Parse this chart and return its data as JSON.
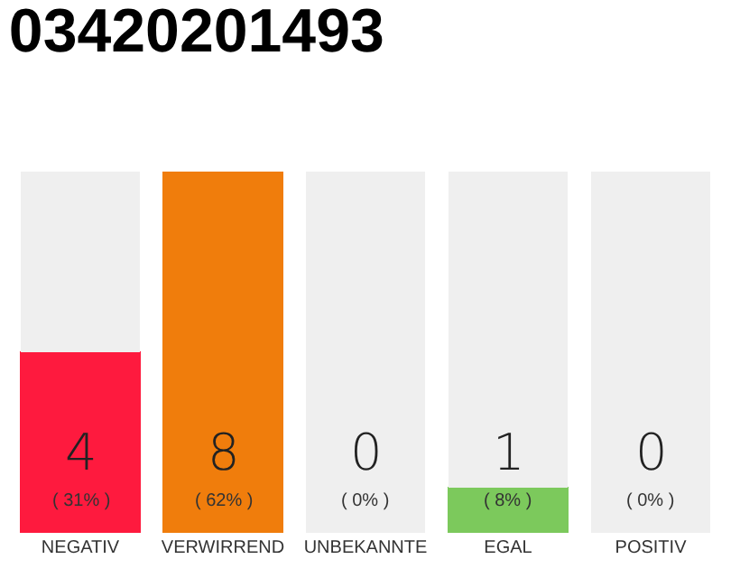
{
  "chart_data": {
    "type": "bar",
    "title": "03420201493",
    "stacked": true,
    "categories": [
      "NEGATIV",
      "VERWIRREND",
      "UNBEKANNTE",
      "EGAL",
      "POSITIV"
    ],
    "series": [
      {
        "colors": [
          "#fe1a3e",
          "#f07d0c",
          "#4a90d9",
          "#7cc95c",
          "#2a9d44"
        ],
        "values": [
          4,
          8,
          0,
          1,
          0
        ],
        "value_labels": [
          "4\n( 31% )",
          "8\n( 62% )",
          "0\n( 0% )",
          "1\n( 8% )",
          "0\n( 0% )"
        ]
      },
      {
        "color": "#efefef",
        "values": [
          4,
          0,
          8,
          7,
          8
        ]
      }
    ]
  }
}
